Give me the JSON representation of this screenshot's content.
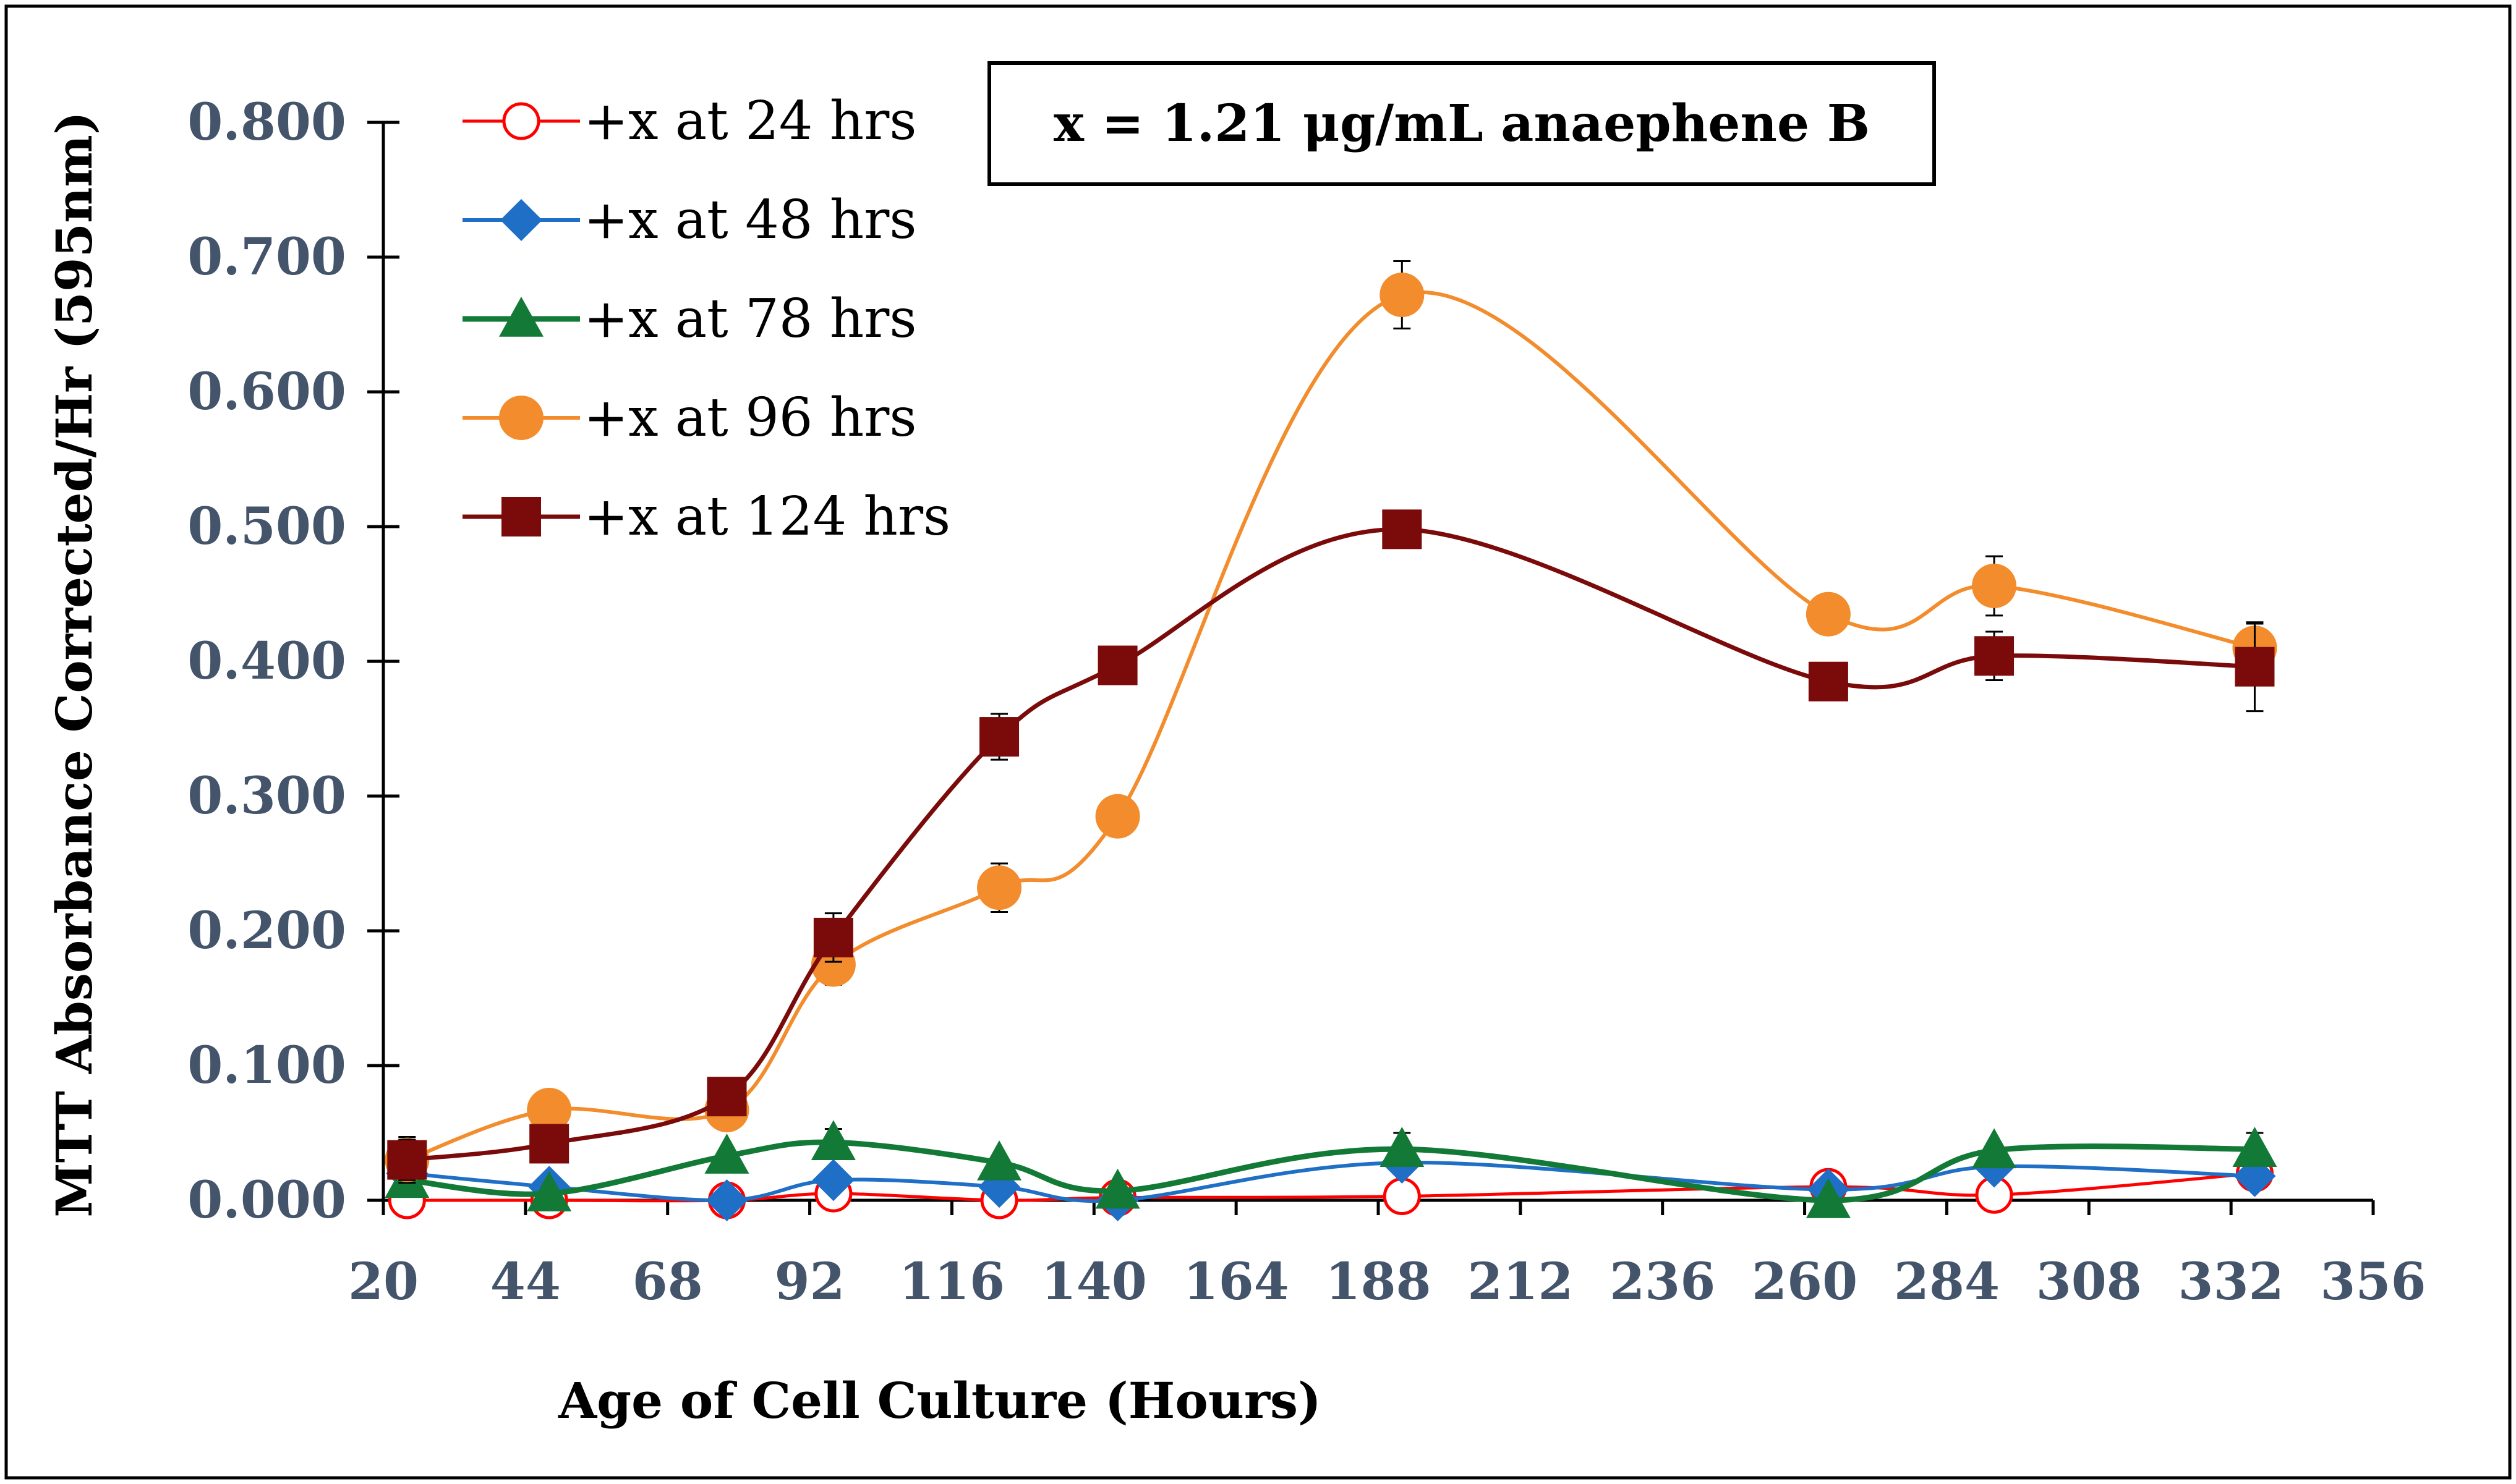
{
  "chart_data": {
    "type": "line",
    "title": "",
    "xlabel": "Age of Cell Culture (Hours)",
    "ylabel": "MTT Absorbance Corrected/Hr (595nm)",
    "xlim": [
      20,
      356
    ],
    "ylim": [
      0,
      0.8
    ],
    "xticks": [
      20,
      44,
      68,
      92,
      116,
      140,
      164,
      188,
      212,
      236,
      260,
      284,
      308,
      332,
      356
    ],
    "xtick_labels": [
      "20",
      "44",
      "68",
      "92",
      "116",
      "140",
      "164",
      "188",
      "212",
      "236",
      "260",
      "284",
      "308",
      "332",
      "356"
    ],
    "yticks": [
      0,
      0.1,
      0.2,
      0.3,
      0.4,
      0.5,
      0.6,
      0.7,
      0.8
    ],
    "ytick_labels": [
      "0.000",
      "0.100",
      "0.200",
      "0.300",
      "0.400",
      "0.500",
      "0.600",
      "0.700",
      "0.800"
    ],
    "grid": false,
    "legend_position": "top-left",
    "annotation": "x = 1.21 μg/mL anaephene B",
    "series": [
      {
        "name": "+x at 24 hrs",
        "color": "#FF0000",
        "marker": "open-circle",
        "x": [
          24,
          48,
          78,
          96,
          124,
          144,
          192,
          264,
          292,
          336
        ],
        "y": [
          0.0,
          0.0,
          0.0,
          0.005,
          0.0,
          0.002,
          0.003,
          0.01,
          0.004,
          0.02
        ],
        "err": [
          0,
          0,
          0,
          0.003,
          0,
          0,
          0,
          0.003,
          0,
          0
        ]
      },
      {
        "name": "+x at 48 hrs",
        "color": "#1F6FC6",
        "marker": "diamond",
        "x": [
          24,
          48,
          78,
          96,
          124,
          144,
          192,
          264,
          292,
          336
        ],
        "y": [
          0.02,
          0.01,
          0.0,
          0.015,
          0.01,
          0.0,
          0.028,
          0.008,
          0.025,
          0.018
        ],
        "err": [
          0,
          0,
          0,
          0,
          0,
          0,
          0,
          0,
          0,
          0
        ]
      },
      {
        "name": "+x at 78 hrs",
        "color": "#127A36",
        "marker": "triangle",
        "x": [
          24,
          48,
          78,
          96,
          124,
          144,
          192,
          264,
          292,
          336
        ],
        "y": [
          0.015,
          0.005,
          0.033,
          0.043,
          0.028,
          0.007,
          0.038,
          0.0,
          0.037,
          0.038
        ],
        "err": [
          0,
          0,
          0,
          0.01,
          0,
          0,
          0.012,
          0,
          0,
          0.012
        ]
      },
      {
        "name": "+x at 96 hrs",
        "color": "#F28C2C",
        "marker": "circle",
        "x": [
          24,
          48,
          78,
          96,
          124,
          144,
          192,
          264,
          292,
          336
        ],
        "y": [
          0.03,
          0.067,
          0.067,
          0.175,
          0.232,
          0.285,
          0.672,
          0.435,
          0.456,
          0.41
        ],
        "err": [
          0.017,
          0.012,
          0.01,
          0.015,
          0.018,
          0,
          0.025,
          0,
          0.022,
          0.018
        ]
      },
      {
        "name": "+x at 124 hrs",
        "color": "#7B0A0A",
        "marker": "square",
        "x": [
          24,
          48,
          78,
          96,
          124,
          144,
          192,
          264,
          292,
          336
        ],
        "y": [
          0.03,
          0.042,
          0.077,
          0.195,
          0.344,
          0.397,
          0.498,
          0.385,
          0.404,
          0.396
        ],
        "err": [
          0.015,
          0,
          0,
          0.018,
          0.017,
          0,
          0,
          0,
          0.018,
          0.033
        ]
      }
    ]
  }
}
